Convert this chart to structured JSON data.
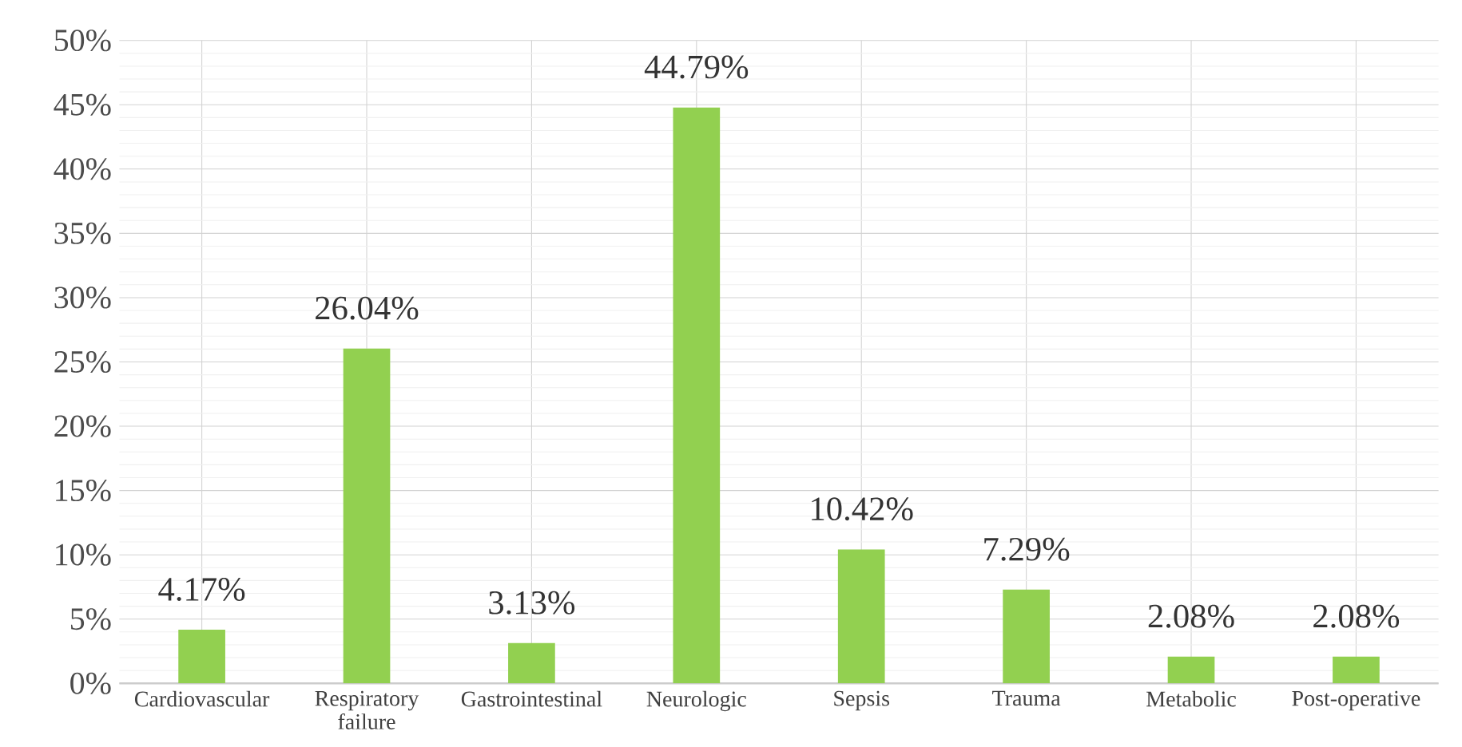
{
  "chart_data": {
    "type": "bar",
    "categories": [
      "Cardiovascular",
      "Respiratory failure",
      "Gastrointestinal",
      "Neurologic",
      "Sepsis",
      "Trauma",
      "Metabolic",
      "Post-operative"
    ],
    "values": [
      4.17,
      26.04,
      3.13,
      44.79,
      10.42,
      7.29,
      2.08,
      2.08
    ],
    "value_labels": [
      "4.17%",
      "26.04%",
      "3.13%",
      "44.79%",
      "10.42%",
      "7.29%",
      "2.08%",
      "2.08%"
    ],
    "color": "#92d050",
    "ylim": [
      0,
      50
    ],
    "yticks": [
      {
        "value": 0,
        "label": "0%"
      },
      {
        "value": 5,
        "label": "5%"
      },
      {
        "value": 10,
        "label": "10%"
      },
      {
        "value": 15,
        "label": "15%"
      },
      {
        "value": 20,
        "label": "20%"
      },
      {
        "value": 25,
        "label": "25%"
      },
      {
        "value": 30,
        "label": "30%"
      },
      {
        "value": 35,
        "label": "35%"
      },
      {
        "value": 40,
        "label": "40%"
      },
      {
        "value": 45,
        "label": "45%"
      },
      {
        "value": 50,
        "label": "50%"
      }
    ],
    "grid": true
  }
}
